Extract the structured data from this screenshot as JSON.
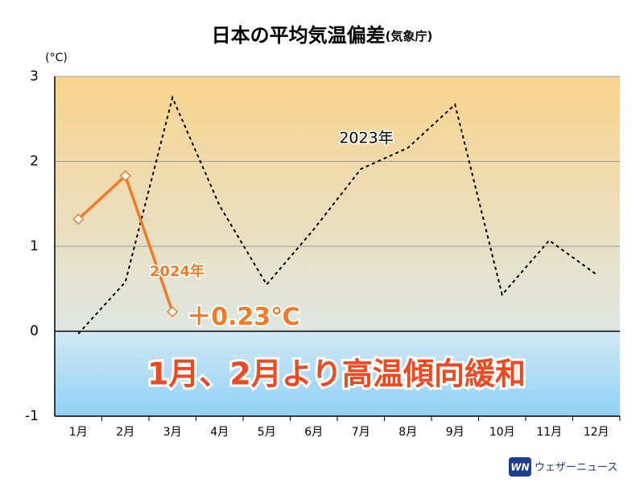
{
  "chart_data": {
    "type": "line",
    "title": "日本の平均気温偏差",
    "subtitle": "(気象庁)",
    "ylabel": "(°C)",
    "categories": [
      "1月",
      "2月",
      "3月",
      "4月",
      "5月",
      "6月",
      "7月",
      "8月",
      "9月",
      "10月",
      "11月",
      "12月"
    ],
    "series": [
      {
        "name": "2023年",
        "color": "#000000",
        "dashed": true,
        "markers": false,
        "values": [
          -0.03,
          0.58,
          2.75,
          1.48,
          0.55,
          1.2,
          1.91,
          2.16,
          2.67,
          0.43,
          1.07,
          0.67
        ]
      },
      {
        "name": "2024年",
        "color": "#f07b24",
        "dashed": false,
        "markers": true,
        "values": [
          1.32,
          1.83,
          0.23,
          null,
          null,
          null,
          null,
          null,
          null,
          null,
          null,
          null
        ],
        "value_labels": [
          null,
          null,
          "＋0.23℃",
          null,
          null,
          null,
          null,
          null,
          null,
          null,
          null,
          null
        ]
      }
    ],
    "ylim": [
      -1,
      3
    ],
    "yticks": [
      -1,
      0,
      1,
      2,
      3
    ],
    "grid": true,
    "annotations": [
      "1月、2月より高温傾向緩和"
    ]
  },
  "logo": {
    "mark": "WN",
    "text": "ウェザーニュース"
  }
}
